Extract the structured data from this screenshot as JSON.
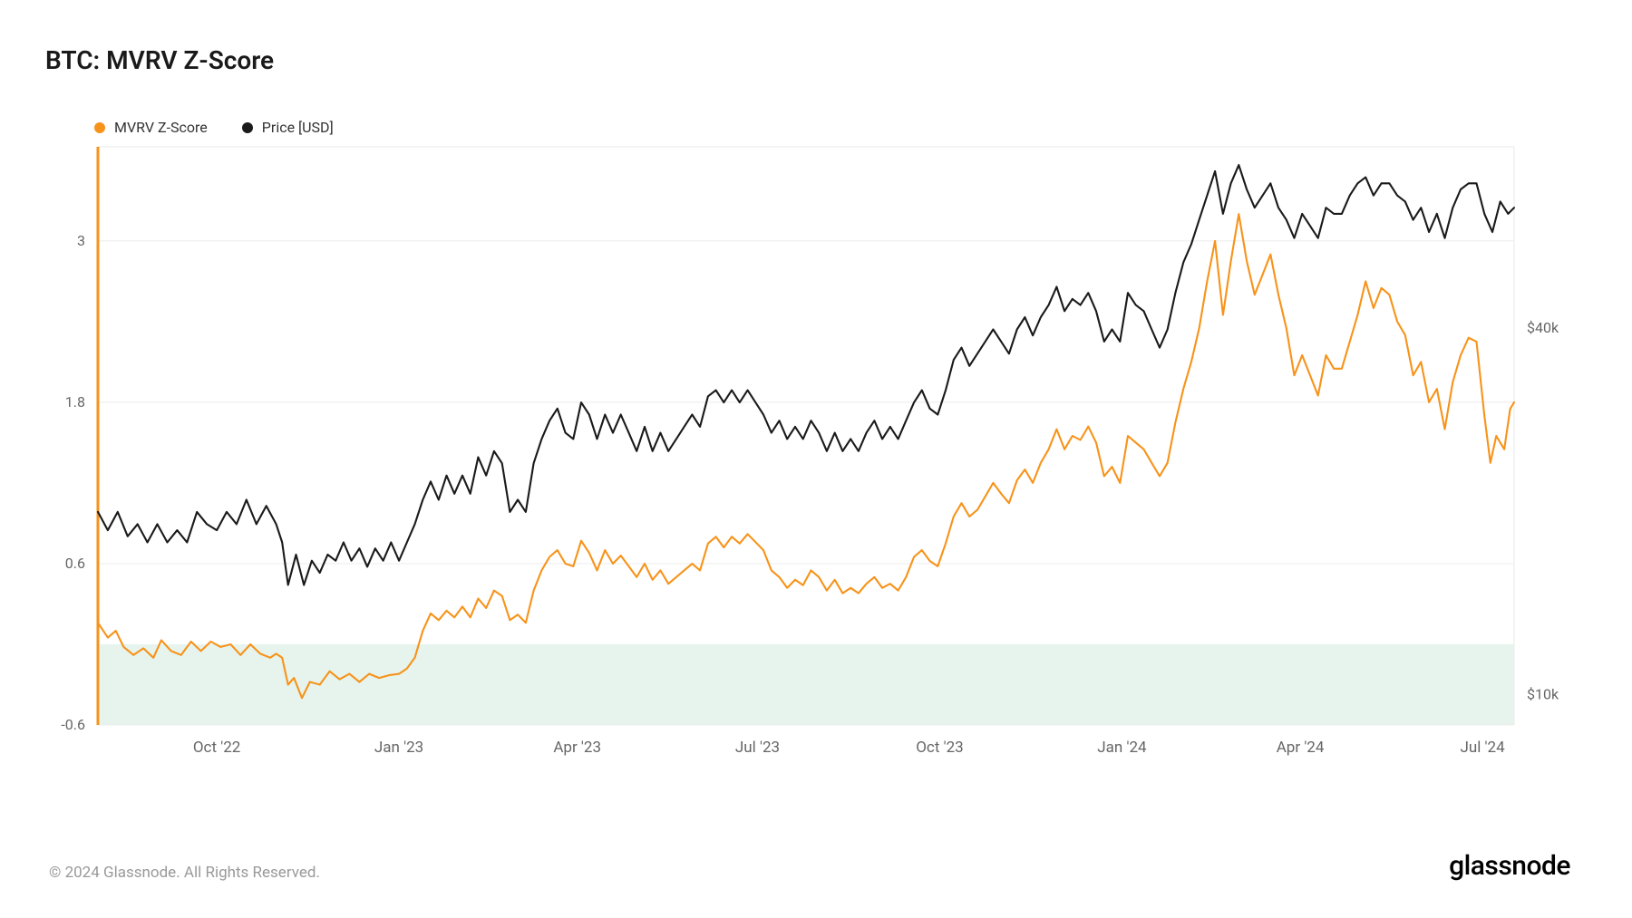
{
  "title": "BTC: MVRV Z-Score",
  "legend": {
    "series1": {
      "label": "MVRV Z-Score",
      "color": "#f7931a"
    },
    "series2": {
      "label": "Price [USD]",
      "color": "#1a1a1a"
    }
  },
  "chart": {
    "type": "line",
    "background_color": "#ffffff",
    "plot_border_color": "#e8e8e8",
    "grid_color": "#ececec",
    "left_axis_line_color": "#f7931a",
    "left_axis_line_width": 3,
    "y_left": {
      "min": -0.6,
      "max": 3.7,
      "ticks": [
        -0.6,
        0.6,
        1.8,
        3.0
      ],
      "labels": [
        "-0.6",
        "0.6",
        "1.8",
        "3"
      ],
      "tick_color": "#666",
      "fontsize": 16
    },
    "y_right_log": {
      "min_log": 3.95,
      "max_log": 4.9,
      "ticks_log": [
        4.0,
        4.602
      ],
      "labels": [
        "$10k",
        "$40k"
      ],
      "tick_color": "#666",
      "fontsize": 16
    },
    "x": {
      "min": 0,
      "max": 715,
      "ticks": [
        60,
        152,
        242,
        333,
        425,
        517,
        607,
        699
      ],
      "labels": [
        "Oct '22",
        "Jan '23",
        "Apr '23",
        "Jul '23",
        "Oct '23",
        "Jan '24",
        "Apr '24",
        "Jul '24"
      ],
      "tick_color": "#666",
      "fontsize": 17
    },
    "green_band": {
      "y_from": -0.6,
      "y_to": 0.0,
      "fill": "#e6f4ed"
    },
    "series_mvrv": {
      "color": "#f7931a",
      "width": 2.1,
      "data": [
        [
          0,
          0.16
        ],
        [
          5,
          0.05
        ],
        [
          9,
          0.1
        ],
        [
          13,
          -0.02
        ],
        [
          18,
          -0.08
        ],
        [
          23,
          -0.03
        ],
        [
          28,
          -0.1
        ],
        [
          32,
          0.03
        ],
        [
          37,
          -0.05
        ],
        [
          42,
          -0.08
        ],
        [
          47,
          0.02
        ],
        [
          52,
          -0.05
        ],
        [
          57,
          0.02
        ],
        [
          62,
          -0.02
        ],
        [
          67,
          0.0
        ],
        [
          72,
          -0.08
        ],
        [
          77,
          0.0
        ],
        [
          82,
          -0.07
        ],
        [
          87,
          -0.1
        ],
        [
          90,
          -0.07
        ],
        [
          93,
          -0.1
        ],
        [
          96,
          -0.3
        ],
        [
          99,
          -0.25
        ],
        [
          103,
          -0.4
        ],
        [
          107,
          -0.28
        ],
        [
          112,
          -0.3
        ],
        [
          117,
          -0.2
        ],
        [
          122,
          -0.26
        ],
        [
          127,
          -0.22
        ],
        [
          132,
          -0.28
        ],
        [
          137,
          -0.22
        ],
        [
          142,
          -0.25
        ],
        [
          147,
          -0.23
        ],
        [
          152,
          -0.22
        ],
        [
          156,
          -0.18
        ],
        [
          160,
          -0.1
        ],
        [
          164,
          0.1
        ],
        [
          168,
          0.23
        ],
        [
          172,
          0.18
        ],
        [
          176,
          0.25
        ],
        [
          180,
          0.2
        ],
        [
          184,
          0.28
        ],
        [
          188,
          0.2
        ],
        [
          192,
          0.34
        ],
        [
          196,
          0.27
        ],
        [
          200,
          0.4
        ],
        [
          204,
          0.36
        ],
        [
          208,
          0.18
        ],
        [
          212,
          0.22
        ],
        [
          216,
          0.16
        ],
        [
          220,
          0.4
        ],
        [
          224,
          0.55
        ],
        [
          228,
          0.65
        ],
        [
          232,
          0.7
        ],
        [
          236,
          0.6
        ],
        [
          240,
          0.58
        ],
        [
          244,
          0.77
        ],
        [
          248,
          0.68
        ],
        [
          252,
          0.55
        ],
        [
          256,
          0.7
        ],
        [
          260,
          0.6
        ],
        [
          264,
          0.66
        ],
        [
          268,
          0.58
        ],
        [
          272,
          0.5
        ],
        [
          276,
          0.6
        ],
        [
          280,
          0.48
        ],
        [
          284,
          0.55
        ],
        [
          288,
          0.45
        ],
        [
          292,
          0.5
        ],
        [
          296,
          0.55
        ],
        [
          300,
          0.6
        ],
        [
          304,
          0.55
        ],
        [
          308,
          0.75
        ],
        [
          312,
          0.8
        ],
        [
          316,
          0.72
        ],
        [
          320,
          0.8
        ],
        [
          324,
          0.75
        ],
        [
          328,
          0.82
        ],
        [
          332,
          0.76
        ],
        [
          336,
          0.7
        ],
        [
          340,
          0.55
        ],
        [
          344,
          0.5
        ],
        [
          348,
          0.42
        ],
        [
          352,
          0.48
        ],
        [
          356,
          0.44
        ],
        [
          360,
          0.55
        ],
        [
          364,
          0.5
        ],
        [
          368,
          0.4
        ],
        [
          372,
          0.48
        ],
        [
          376,
          0.38
        ],
        [
          380,
          0.42
        ],
        [
          384,
          0.38
        ],
        [
          388,
          0.45
        ],
        [
          392,
          0.5
        ],
        [
          396,
          0.42
        ],
        [
          400,
          0.45
        ],
        [
          404,
          0.4
        ],
        [
          408,
          0.5
        ],
        [
          412,
          0.65
        ],
        [
          416,
          0.7
        ],
        [
          420,
          0.62
        ],
        [
          424,
          0.58
        ],
        [
          428,
          0.75
        ],
        [
          432,
          0.95
        ],
        [
          436,
          1.05
        ],
        [
          440,
          0.95
        ],
        [
          444,
          1.0
        ],
        [
          448,
          1.1
        ],
        [
          452,
          1.2
        ],
        [
          456,
          1.12
        ],
        [
          460,
          1.05
        ],
        [
          464,
          1.22
        ],
        [
          468,
          1.3
        ],
        [
          472,
          1.2
        ],
        [
          476,
          1.35
        ],
        [
          480,
          1.45
        ],
        [
          484,
          1.6
        ],
        [
          488,
          1.45
        ],
        [
          492,
          1.55
        ],
        [
          496,
          1.52
        ],
        [
          500,
          1.62
        ],
        [
          504,
          1.5
        ],
        [
          508,
          1.25
        ],
        [
          512,
          1.32
        ],
        [
          516,
          1.2
        ],
        [
          520,
          1.55
        ],
        [
          524,
          1.5
        ],
        [
          528,
          1.45
        ],
        [
          532,
          1.35
        ],
        [
          536,
          1.25
        ],
        [
          540,
          1.35
        ],
        [
          544,
          1.65
        ],
        [
          548,
          1.9
        ],
        [
          552,
          2.1
        ],
        [
          556,
          2.35
        ],
        [
          560,
          2.7
        ],
        [
          564,
          3.0
        ],
        [
          568,
          2.45
        ],
        [
          572,
          2.85
        ],
        [
          576,
          3.2
        ],
        [
          580,
          2.85
        ],
        [
          584,
          2.6
        ],
        [
          588,
          2.75
        ],
        [
          592,
          2.9
        ],
        [
          596,
          2.6
        ],
        [
          600,
          2.35
        ],
        [
          604,
          2.0
        ],
        [
          608,
          2.15
        ],
        [
          612,
          2.0
        ],
        [
          616,
          1.85
        ],
        [
          620,
          2.15
        ],
        [
          624,
          2.05
        ],
        [
          628,
          2.05
        ],
        [
          632,
          2.25
        ],
        [
          636,
          2.45
        ],
        [
          640,
          2.7
        ],
        [
          644,
          2.5
        ],
        [
          648,
          2.65
        ],
        [
          652,
          2.6
        ],
        [
          656,
          2.4
        ],
        [
          660,
          2.3
        ],
        [
          664,
          2.0
        ],
        [
          668,
          2.1
        ],
        [
          672,
          1.8
        ],
        [
          676,
          1.9
        ],
        [
          680,
          1.6
        ],
        [
          684,
          1.95
        ],
        [
          688,
          2.15
        ],
        [
          692,
          2.28
        ],
        [
          696,
          2.25
        ],
        [
          700,
          1.7
        ],
        [
          703,
          1.35
        ],
        [
          706,
          1.55
        ],
        [
          710,
          1.45
        ],
        [
          713,
          1.75
        ],
        [
          715,
          1.8
        ]
      ]
    },
    "series_price_log": {
      "color": "#1a1a1a",
      "width": 2.1,
      "data": [
        [
          0,
          4.3
        ],
        [
          5,
          4.27
        ],
        [
          10,
          4.3
        ],
        [
          15,
          4.26
        ],
        [
          20,
          4.28
        ],
        [
          25,
          4.25
        ],
        [
          30,
          4.28
        ],
        [
          35,
          4.25
        ],
        [
          40,
          4.27
        ],
        [
          45,
          4.25
        ],
        [
          50,
          4.3
        ],
        [
          55,
          4.28
        ],
        [
          60,
          4.27
        ],
        [
          65,
          4.3
        ],
        [
          70,
          4.28
        ],
        [
          75,
          4.32
        ],
        [
          80,
          4.28
        ],
        [
          85,
          4.31
        ],
        [
          90,
          4.28
        ],
        [
          93,
          4.25
        ],
        [
          96,
          4.18
        ],
        [
          100,
          4.23
        ],
        [
          104,
          4.18
        ],
        [
          108,
          4.22
        ],
        [
          112,
          4.2
        ],
        [
          116,
          4.23
        ],
        [
          120,
          4.22
        ],
        [
          124,
          4.25
        ],
        [
          128,
          4.22
        ],
        [
          132,
          4.24
        ],
        [
          136,
          4.21
        ],
        [
          140,
          4.24
        ],
        [
          144,
          4.22
        ],
        [
          148,
          4.25
        ],
        [
          152,
          4.22
        ],
        [
          156,
          4.25
        ],
        [
          160,
          4.28
        ],
        [
          164,
          4.32
        ],
        [
          168,
          4.35
        ],
        [
          172,
          4.32
        ],
        [
          176,
          4.36
        ],
        [
          180,
          4.33
        ],
        [
          184,
          4.36
        ],
        [
          188,
          4.33
        ],
        [
          192,
          4.39
        ],
        [
          196,
          4.36
        ],
        [
          200,
          4.4
        ],
        [
          204,
          4.38
        ],
        [
          208,
          4.3
        ],
        [
          212,
          4.32
        ],
        [
          216,
          4.3
        ],
        [
          220,
          4.38
        ],
        [
          224,
          4.42
        ],
        [
          228,
          4.45
        ],
        [
          232,
          4.47
        ],
        [
          236,
          4.43
        ],
        [
          240,
          4.42
        ],
        [
          244,
          4.48
        ],
        [
          248,
          4.46
        ],
        [
          252,
          4.42
        ],
        [
          256,
          4.46
        ],
        [
          260,
          4.43
        ],
        [
          264,
          4.46
        ],
        [
          268,
          4.43
        ],
        [
          272,
          4.4
        ],
        [
          276,
          4.44
        ],
        [
          280,
          4.4
        ],
        [
          284,
          4.43
        ],
        [
          288,
          4.4
        ],
        [
          292,
          4.42
        ],
        [
          296,
          4.44
        ],
        [
          300,
          4.46
        ],
        [
          304,
          4.44
        ],
        [
          308,
          4.49
        ],
        [
          312,
          4.5
        ],
        [
          316,
          4.48
        ],
        [
          320,
          4.5
        ],
        [
          324,
          4.48
        ],
        [
          328,
          4.5
        ],
        [
          332,
          4.48
        ],
        [
          336,
          4.46
        ],
        [
          340,
          4.43
        ],
        [
          344,
          4.45
        ],
        [
          348,
          4.42
        ],
        [
          352,
          4.44
        ],
        [
          356,
          4.42
        ],
        [
          360,
          4.45
        ],
        [
          364,
          4.43
        ],
        [
          368,
          4.4
        ],
        [
          372,
          4.43
        ],
        [
          376,
          4.4
        ],
        [
          380,
          4.42
        ],
        [
          384,
          4.4
        ],
        [
          388,
          4.43
        ],
        [
          392,
          4.45
        ],
        [
          396,
          4.42
        ],
        [
          400,
          4.44
        ],
        [
          404,
          4.42
        ],
        [
          408,
          4.45
        ],
        [
          412,
          4.48
        ],
        [
          416,
          4.5
        ],
        [
          420,
          4.47
        ],
        [
          424,
          4.46
        ],
        [
          428,
          4.5
        ],
        [
          432,
          4.55
        ],
        [
          436,
          4.57
        ],
        [
          440,
          4.54
        ],
        [
          444,
          4.56
        ],
        [
          448,
          4.58
        ],
        [
          452,
          4.6
        ],
        [
          456,
          4.58
        ],
        [
          460,
          4.56
        ],
        [
          464,
          4.6
        ],
        [
          468,
          4.62
        ],
        [
          472,
          4.59
        ],
        [
          476,
          4.62
        ],
        [
          480,
          4.64
        ],
        [
          484,
          4.67
        ],
        [
          488,
          4.63
        ],
        [
          492,
          4.65
        ],
        [
          496,
          4.64
        ],
        [
          500,
          4.66
        ],
        [
          504,
          4.63
        ],
        [
          508,
          4.58
        ],
        [
          512,
          4.6
        ],
        [
          516,
          4.58
        ],
        [
          520,
          4.66
        ],
        [
          524,
          4.64
        ],
        [
          528,
          4.63
        ],
        [
          532,
          4.6
        ],
        [
          536,
          4.57
        ],
        [
          540,
          4.6
        ],
        [
          544,
          4.66
        ],
        [
          548,
          4.71
        ],
        [
          552,
          4.74
        ],
        [
          556,
          4.78
        ],
        [
          560,
          4.82
        ],
        [
          564,
          4.86
        ],
        [
          568,
          4.79
        ],
        [
          572,
          4.84
        ],
        [
          576,
          4.87
        ],
        [
          580,
          4.83
        ],
        [
          584,
          4.8
        ],
        [
          588,
          4.82
        ],
        [
          592,
          4.84
        ],
        [
          596,
          4.8
        ],
        [
          600,
          4.78
        ],
        [
          604,
          4.75
        ],
        [
          608,
          4.79
        ],
        [
          612,
          4.77
        ],
        [
          616,
          4.75
        ],
        [
          620,
          4.8
        ],
        [
          624,
          4.79
        ],
        [
          628,
          4.79
        ],
        [
          632,
          4.82
        ],
        [
          636,
          4.84
        ],
        [
          640,
          4.85
        ],
        [
          644,
          4.82
        ],
        [
          648,
          4.84
        ],
        [
          652,
          4.84
        ],
        [
          656,
          4.82
        ],
        [
          660,
          4.81
        ],
        [
          664,
          4.78
        ],
        [
          668,
          4.8
        ],
        [
          672,
          4.76
        ],
        [
          676,
          4.79
        ],
        [
          680,
          4.75
        ],
        [
          684,
          4.8
        ],
        [
          688,
          4.83
        ],
        [
          692,
          4.84
        ],
        [
          696,
          4.84
        ],
        [
          700,
          4.79
        ],
        [
          704,
          4.76
        ],
        [
          708,
          4.81
        ],
        [
          712,
          4.79
        ],
        [
          715,
          4.8
        ]
      ]
    }
  },
  "footer": {
    "copyright": "© 2024 Glassnode. All Rights Reserved.",
    "brand": "glassnode"
  }
}
